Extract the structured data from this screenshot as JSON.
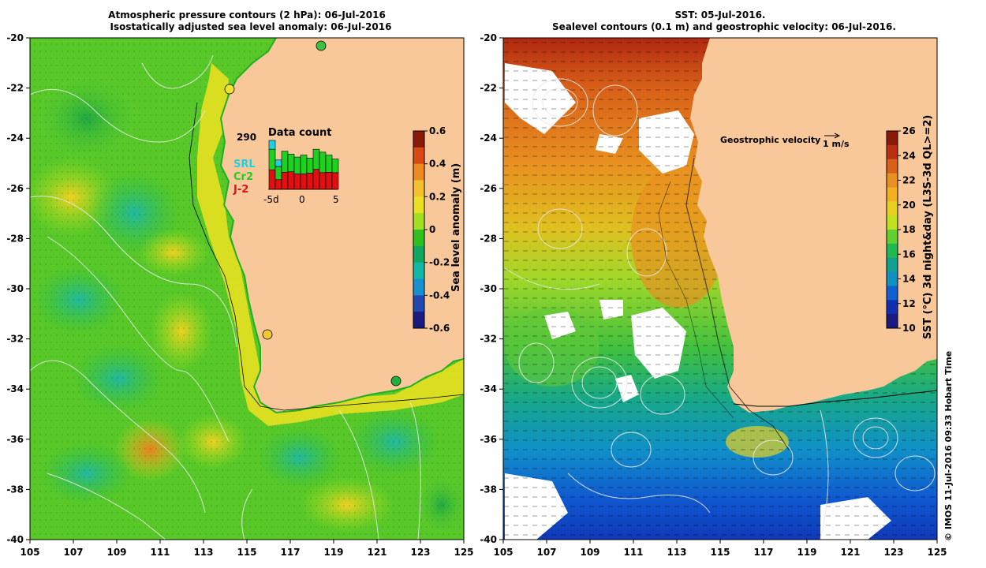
{
  "left_panel": {
    "title_line1": "Atmospheric pressure contours (2 hPa): 06-Jul-2016",
    "title_line2": "Isostatically adjusted sea level anomaly: 06-Jul-2016",
    "x_ticks": [
      "105",
      "107",
      "109",
      "111",
      "113",
      "115",
      "117",
      "119",
      "121",
      "123",
      "125"
    ],
    "y_ticks": [
      "-20",
      "-22",
      "-24",
      "-26",
      "-28",
      "-30",
      "-32",
      "-34",
      "-36",
      "-38",
      "-40"
    ],
    "colorbar": {
      "label": "Sea level anomaly (m)",
      "ticks": [
        "0.6",
        "0.4",
        "0.2",
        "0",
        "-0.2",
        "-0.4",
        "-0.6"
      ],
      "colors": [
        "#8a1a08",
        "#d84a10",
        "#f08a20",
        "#f4c030",
        "#e8e020",
        "#a0e020",
        "#30c020",
        "#10a860",
        "#10b8a8",
        "#1890d0",
        "#2048b0",
        "#1a1a80"
      ]
    },
    "inset": {
      "count": "290",
      "heading": "Data count",
      "legend": [
        {
          "label": "SRL",
          "color": "#20d0e0"
        },
        {
          "label": "Cr2",
          "color": "#20d020"
        },
        {
          "label": "J-2",
          "color": "#e01010"
        }
      ],
      "x_labels": [
        "-5d",
        "0",
        "5"
      ],
      "bars": [
        {
          "srl": 0.18,
          "cr2": 0.42,
          "j2": 0.4
        },
        {
          "srl": 0.22,
          "cr2": 0.45,
          "j2": 0.33
        },
        {
          "srl": 0.0,
          "cr2": 0.55,
          "j2": 0.45
        },
        {
          "srl": 0.0,
          "cr2": 0.5,
          "j2": 0.5
        },
        {
          "srl": 0.0,
          "cr2": 0.52,
          "j2": 0.48
        },
        {
          "srl": 0.0,
          "cr2": 0.55,
          "j2": 0.45
        },
        {
          "srl": 0.0,
          "cr2": 0.48,
          "j2": 0.52
        },
        {
          "srl": 0.0,
          "cr2": 0.5,
          "j2": 0.5
        },
        {
          "srl": 0.0,
          "cr2": 0.55,
          "j2": 0.45
        },
        {
          "srl": 0.0,
          "cr2": 0.5,
          "j2": 0.5
        },
        {
          "srl": 0.0,
          "cr2": 0.45,
          "j2": 0.55
        }
      ],
      "bar_levels": [
        1.0,
        0.6,
        0.78,
        0.72,
        0.66,
        0.7,
        0.64,
        0.82,
        0.76,
        0.7,
        0.62
      ]
    }
  },
  "right_panel": {
    "title_line1": "SST: 05-Jul-2016.",
    "title_line2": "Sealevel contours (0.1 m) and geostrophic velocity: 06-Jul-2016.",
    "x_ticks": [
      "105",
      "107",
      "109",
      "111",
      "113",
      "115",
      "117",
      "119",
      "121",
      "123",
      "125"
    ],
    "y_ticks": [
      "-20",
      "-22",
      "-24",
      "-26",
      "-28",
      "-30",
      "-32",
      "-34",
      "-36",
      "-38",
      "-40"
    ],
    "velocity_label": "Geostrophic velocity",
    "velocity_scale": "1 m/s",
    "colorbar": {
      "label": "SST (°C) 3d night&day (L3S-3d QL>=2)",
      "ticks": [
        "26",
        "24",
        "22",
        "20",
        "18",
        "16",
        "14",
        "12",
        "10"
      ],
      "colors": [
        "#8a1a08",
        "#b83010",
        "#d86018",
        "#e89020",
        "#f0b020",
        "#e8d020",
        "#c0e020",
        "#60d030",
        "#20b850",
        "#10a090",
        "#1090c0",
        "#1060d0",
        "#1030b0",
        "#1a1a80"
      ]
    }
  },
  "credit": "© IMOS 11-Jul-2016 09:33 Hobart Time",
  "colors": {
    "land": "#f8c89a",
    "cloud": "#ffffff",
    "contour": "#e8e8e8",
    "coastline": "#000000"
  }
}
